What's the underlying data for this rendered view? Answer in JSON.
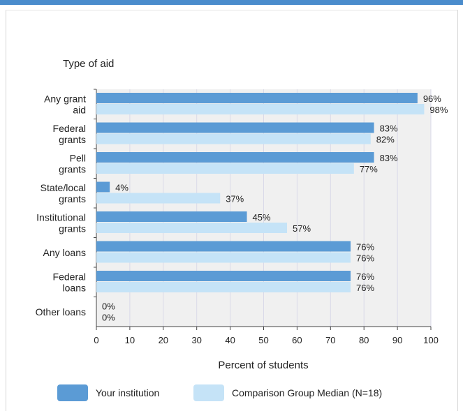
{
  "chart_data": {
    "type": "bar",
    "orientation": "horizontal",
    "title": "Type of aid",
    "xlabel": "Percent of students",
    "xlim": [
      0,
      100
    ],
    "xticks": [
      0,
      10,
      20,
      30,
      40,
      50,
      60,
      70,
      80,
      90,
      100
    ],
    "grid": true,
    "legend_position": "bottom",
    "categories": [
      [
        "Any grant",
        "aid"
      ],
      [
        "Federal",
        "grants"
      ],
      [
        "Pell",
        "grants"
      ],
      [
        "State/local",
        "grants"
      ],
      [
        "Institutional",
        "grants"
      ],
      [
        "Any loans"
      ],
      [
        "Federal",
        "loans"
      ],
      [
        "Other loans"
      ]
    ],
    "series": [
      {
        "name": "Your institution",
        "color": "#5b9bd5",
        "values": [
          96,
          83,
          83,
          4,
          45,
          76,
          76,
          0
        ]
      },
      {
        "name": "Comparison Group Median (N=18)",
        "color": "#c5e3f7",
        "values": [
          98,
          82,
          77,
          37,
          57,
          76,
          76,
          0
        ]
      }
    ],
    "value_suffix": "%"
  }
}
